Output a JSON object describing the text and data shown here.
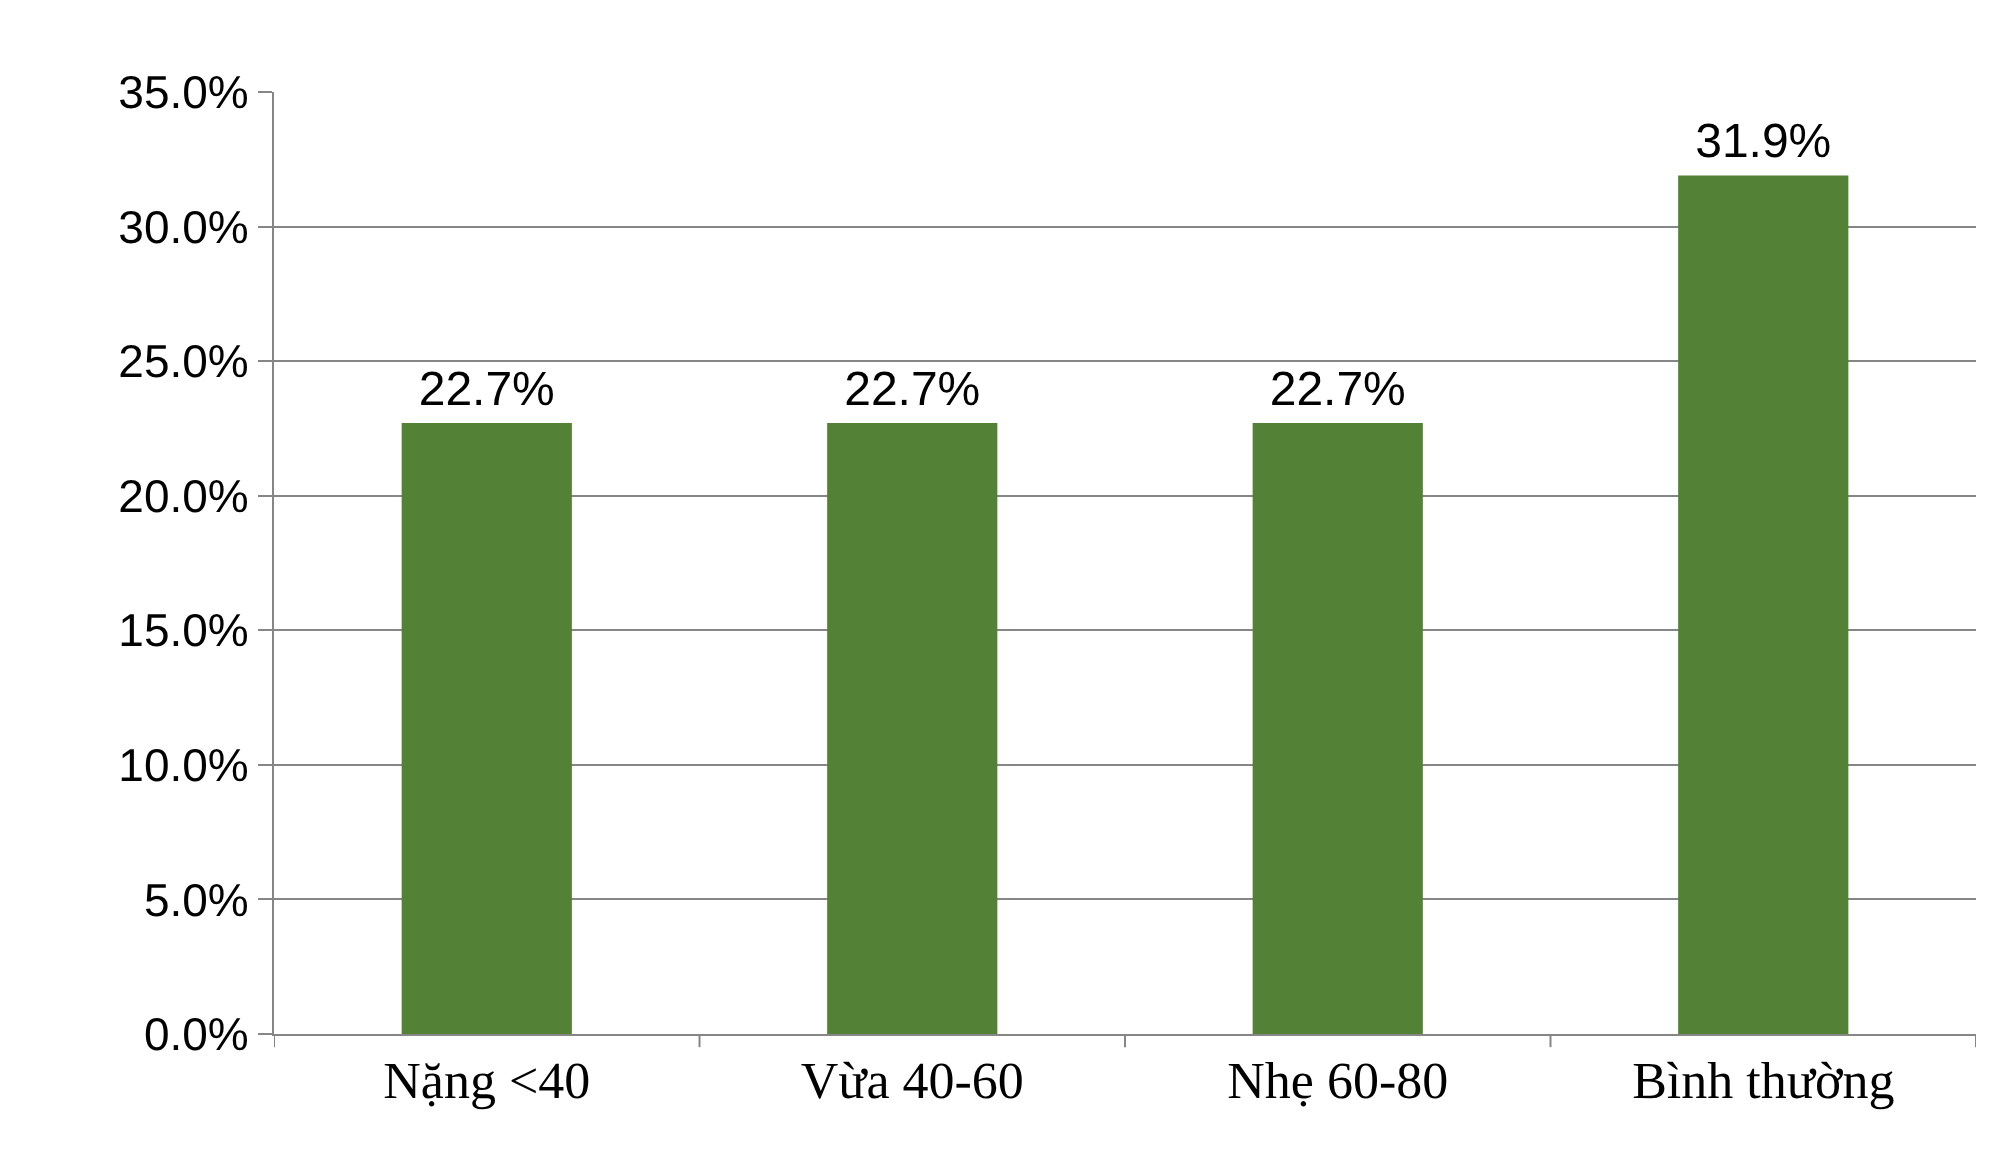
{
  "chart_data": {
    "type": "bar",
    "categories": [
      "Nặng <40",
      "Vừa 40-60",
      "Nhẹ 60-80",
      "Bình thường"
    ],
    "values": [
      22.7,
      22.7,
      22.7,
      31.9
    ],
    "value_labels": [
      "22.7%",
      "22.7%",
      "22.7%",
      "31.9%"
    ],
    "color": "#538135",
    "ylim": [
      0,
      35
    ],
    "yticks": [
      {
        "value": 0,
        "label": "0.0%"
      },
      {
        "value": 5,
        "label": "5.0%"
      },
      {
        "value": 10,
        "label": "10.0%"
      },
      {
        "value": 15,
        "label": "15.0%"
      },
      {
        "value": 20,
        "label": "20.0%"
      },
      {
        "value": 25,
        "label": "25.0%"
      },
      {
        "value": 30,
        "label": "30.0%"
      },
      {
        "value": 35,
        "label": "35.0%"
      }
    ],
    "grid": "y",
    "legend": false
  }
}
